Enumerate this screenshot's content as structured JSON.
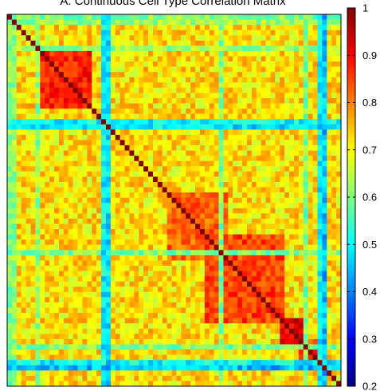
{
  "chart_data": {
    "type": "heatmap",
    "title": "A. Continuous Cell Type Correlation Matrix",
    "matrix_size": 71,
    "value_range": [
      0.2,
      1.0
    ],
    "diagonal_value": 1.0,
    "colormap": "jet",
    "colorbar": {
      "location": "right",
      "ticks": [
        0.2,
        0.3,
        0.4,
        0.5,
        0.6,
        0.7,
        0.8,
        0.9,
        1
      ],
      "tick_labels": [
        "0.2",
        "0.3",
        "0.4",
        "0.5",
        "0.6",
        "0.7",
        "0.8",
        "0.9",
        "1"
      ]
    },
    "blocks": [
      {
        "rows": [
          6,
          17
        ],
        "typical_value": 0.88
      },
      {
        "rows": [
          34,
          46
        ],
        "typical_value": 0.82
      },
      {
        "rows": [
          42,
          58
        ],
        "typical_value": 0.85
      },
      {
        "rows": [
          58,
          62
        ],
        "typical_value": 0.92
      },
      {
        "rows": [
          62,
          66
        ],
        "typical_value": 0.85
      }
    ],
    "low_correlation_rows": [
      {
        "index": 0,
        "value": 0.6
      },
      {
        "index": 1,
        "value": 0.62
      },
      {
        "index": 6,
        "value": 0.62
      },
      {
        "index": 20,
        "value": 0.5
      },
      {
        "index": 21,
        "value": 0.48
      },
      {
        "index": 45,
        "value": 0.6
      },
      {
        "index": 63,
        "value": 0.6
      },
      {
        "index": 66,
        "value": 0.5
      },
      {
        "index": 67,
        "value": 0.45
      }
    ],
    "background_value": 0.72,
    "grid": false,
    "legend": "none"
  }
}
